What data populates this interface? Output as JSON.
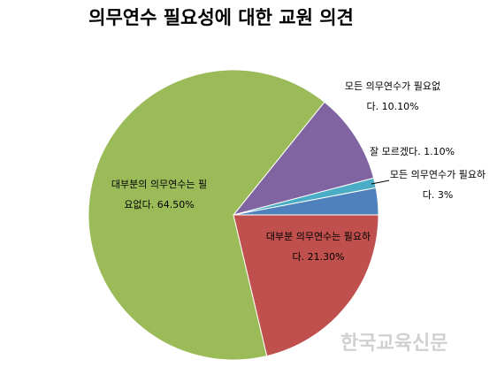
{
  "chart_data": {
    "type": "pie",
    "title": "의무연수 필요성에 대한 교원 의견",
    "categories": [
      "대부분 의무연수는 필요하다.",
      "대부분의 의무연수는 필요없다.",
      "모든 의무연수가 필요없다.",
      "잘 모르겠다.",
      "모든 의무연수가 필요하다."
    ],
    "values": [
      21.3,
      64.5,
      10.1,
      1.1,
      3
    ],
    "value_labels": [
      "21.30%",
      "64.50%",
      "10.10%",
      "1.10%",
      "3%"
    ],
    "colors": [
      "#c0504d",
      "#9bbb59",
      "#8064a2",
      "#4bacc6",
      "#4f81bd"
    ],
    "watermark": "한국교육신문"
  }
}
